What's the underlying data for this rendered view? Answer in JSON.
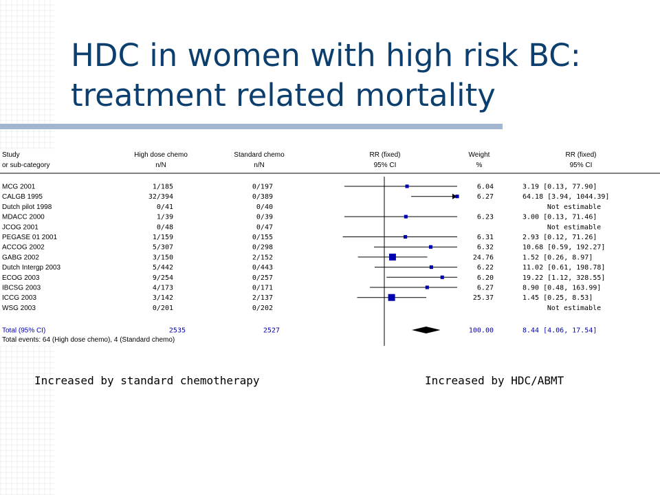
{
  "slide": {
    "title_line1": "HDC in women with high risk BC:",
    "title_line2": "treatment related mortality",
    "left_label": "Increased by standard chemotherapy",
    "right_label": "Increased by HDC/ABMT"
  },
  "colors": {
    "title": "#0d3f6e",
    "rule": "#a3b6cf",
    "point": "#0000b0",
    "total_text": "#0000b0"
  },
  "chart_data": {
    "type": "forest",
    "headers": {
      "study": [
        "Study",
        "or sub-category"
      ],
      "hdc": [
        "High dose chemo",
        "n/N"
      ],
      "std": [
        "Standard chemo",
        "n/N"
      ],
      "rr_plot": [
        "RR (fixed)",
        "95% CI"
      ],
      "weight": [
        "Weight",
        "%"
      ],
      "rr_text": [
        "RR (fixed)",
        "95% CI"
      ]
    },
    "scale": "log",
    "null_value": 1,
    "rows": [
      {
        "study": "MCG 2001",
        "hdc": "1/185",
        "std": "0/197",
        "weight": "6.04",
        "rr_text": "3.19 [0.13, 77.90]",
        "rr": 3.19,
        "lo": 0.13,
        "hi": 77.9
      },
      {
        "study": "CALGB 1995",
        "hdc": "32/394",
        "std": "0/389",
        "weight": "6.27",
        "rr_text": "64.18 [3.94, 1044.39]",
        "rr": 64.18,
        "lo": 3.94,
        "hi": 1044.39,
        "arrow_right": true
      },
      {
        "study": "Dutch pilot 1998",
        "hdc": "0/41",
        "std": "0/40",
        "weight": "",
        "rr_text": "Not estimable",
        "rr": null
      },
      {
        "study": "MDACC 2000",
        "hdc": "1/39",
        "std": "0/39",
        "weight": "6.23",
        "rr_text": "3.00 [0.13, 71.46]",
        "rr": 3.0,
        "lo": 0.13,
        "hi": 71.46
      },
      {
        "study": "JCOG 2001",
        "hdc": "0/48",
        "std": "0/47",
        "weight": "",
        "rr_text": "Not estimable",
        "rr": null
      },
      {
        "study": "PEGASE 01 2001",
        "hdc": "1/159",
        "std": "0/155",
        "weight": "6.31",
        "rr_text": "2.93 [0.12, 71.26]",
        "rr": 2.93,
        "lo": 0.12,
        "hi": 71.26
      },
      {
        "study": "ACCOG 2002",
        "hdc": "5/307",
        "std": "0/298",
        "weight": "6.32",
        "rr_text": "10.68 [0.59, 192.27]",
        "rr": 10.68,
        "lo": 0.59,
        "hi": 192.27
      },
      {
        "study": "GABG 2002",
        "hdc": "3/150",
        "std": "2/152",
        "weight": "24.76",
        "rr_text": "1.52 [0.26, 8.97]",
        "rr": 1.52,
        "lo": 0.26,
        "hi": 8.97
      },
      {
        "study": "Dutch Intergp 2003",
        "hdc": "5/442",
        "std": "0/443",
        "weight": "6.22",
        "rr_text": "11.02 [0.61, 198.78]",
        "rr": 11.02,
        "lo": 0.61,
        "hi": 198.78
      },
      {
        "study": "ECOG 2003",
        "hdc": "9/254",
        "std": "0/257",
        "weight": "6.20",
        "rr_text": "19.22 [1.12, 328.55]",
        "rr": 19.22,
        "lo": 1.12,
        "hi": 328.55
      },
      {
        "study": "IBCSG 2003",
        "hdc": "4/173",
        "std": "0/171",
        "weight": "6.27",
        "rr_text": "8.90 [0.48, 163.99]",
        "rr": 8.9,
        "lo": 0.48,
        "hi": 163.99
      },
      {
        "study": "ICCG 2003",
        "hdc": "3/142",
        "std": "2/137",
        "weight": "25.37",
        "rr_text": "1.45 [0.25, 8.53]",
        "rr": 1.45,
        "lo": 0.25,
        "hi": 8.53
      },
      {
        "study": "WSG 2003",
        "hdc": "0/201",
        "std": "0/202",
        "weight": "",
        "rr_text": "Not estimable",
        "rr": null
      }
    ],
    "total": {
      "study": "Total (95% CI)",
      "hdc": "2535",
      "std": "2527",
      "weight": "100.00",
      "rr_text": "8.44 [4.06, 17.54]",
      "rr": 8.44,
      "lo": 4.06,
      "hi": 17.54
    },
    "events_note": "Total events: 64 (High dose chemo), 4 (Standard chemo)"
  }
}
